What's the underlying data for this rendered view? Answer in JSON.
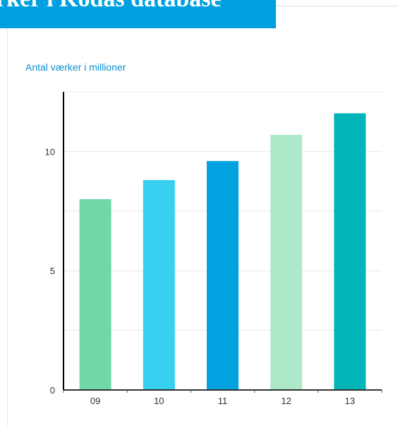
{
  "banner": {
    "title": "rker i Kodas database",
    "color": "#009fe0"
  },
  "chart_data": {
    "type": "bar",
    "title": "Antal værker i millioner",
    "xlabel": "",
    "ylabel": "",
    "categories": [
      "09",
      "10",
      "11",
      "12",
      "13"
    ],
    "values": [
      8.0,
      8.8,
      9.6,
      10.7,
      11.6
    ],
    "bar_colors": [
      "#6fd8a6",
      "#37d0f0",
      "#00a3df",
      "#ade8c9",
      "#00b4b8"
    ],
    "yticks": [
      0,
      5,
      10
    ],
    "ylim": [
      0,
      12.5
    ],
    "grid": true,
    "legend": "none"
  }
}
